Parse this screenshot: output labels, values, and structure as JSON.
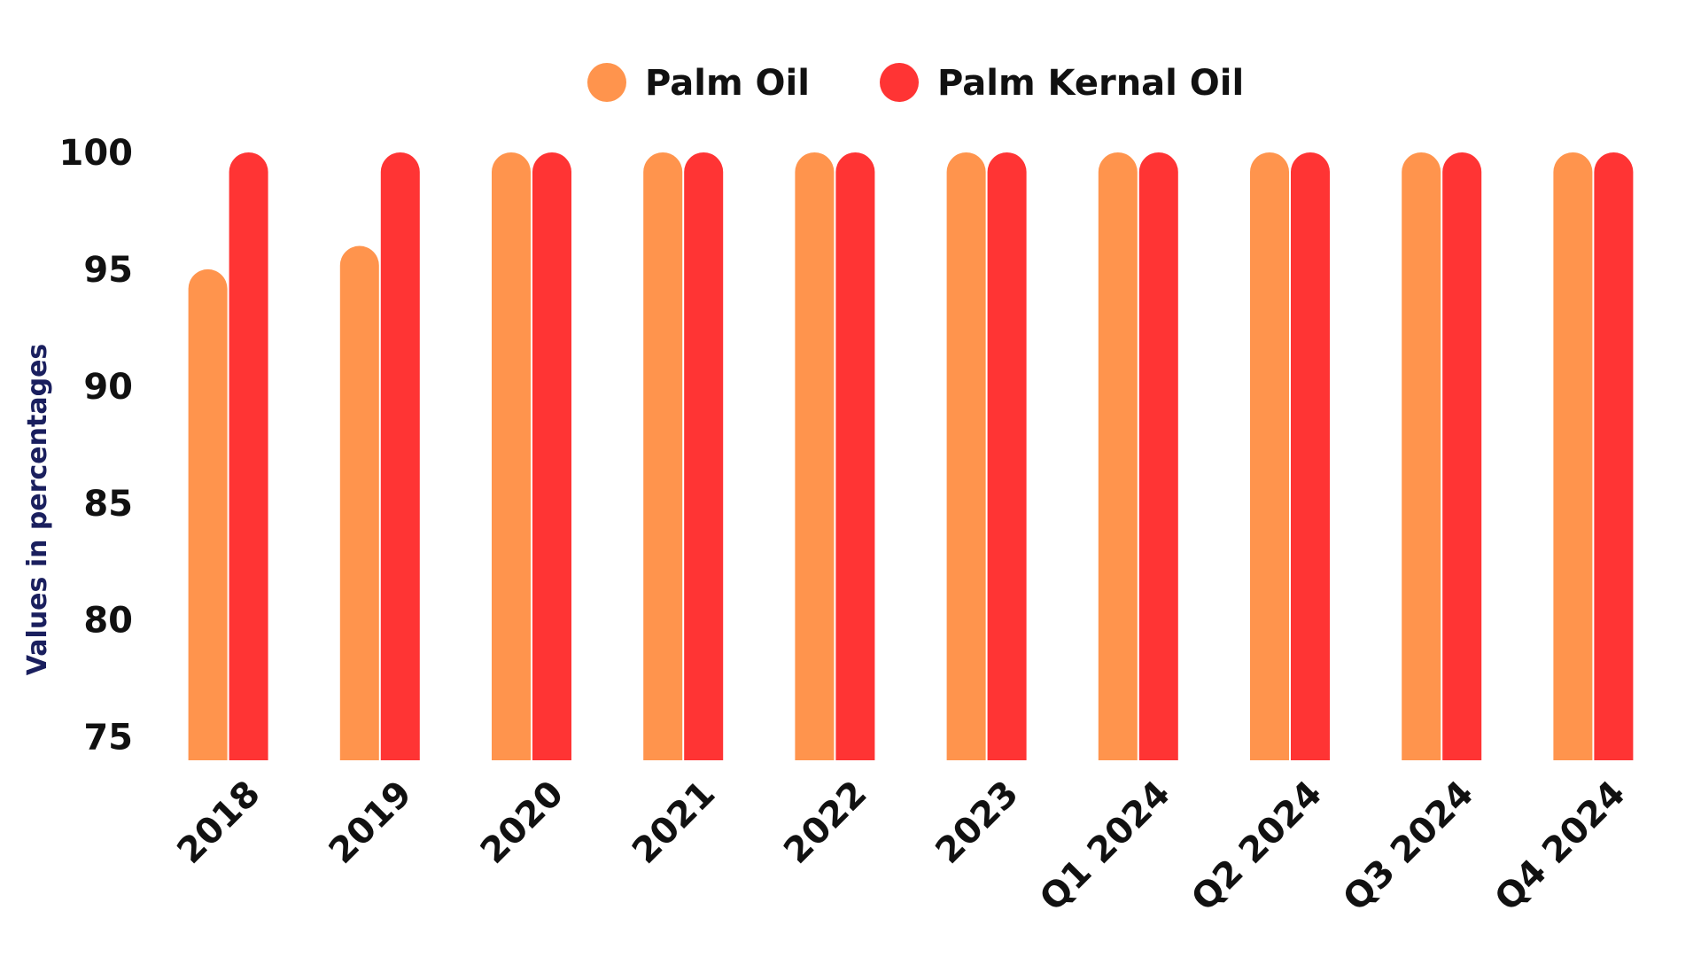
{
  "chart_data": {
    "type": "bar",
    "title": "",
    "xlabel": "",
    "ylabel": "Values in percentages",
    "categories": [
      "2018",
      "2019",
      "2020",
      "2021",
      "2022",
      "2023",
      "Q1 2024",
      "Q2 2024",
      "Q3 2024",
      "Q4 2024"
    ],
    "series": [
      {
        "name": "Palm Oil",
        "color": "#FF944D",
        "values": [
          95,
          96,
          100,
          100,
          100,
          100,
          100,
          100,
          100,
          100
        ]
      },
      {
        "name": "Palm Kernal Oil",
        "color": "#FF3434",
        "values": [
          100,
          100,
          100,
          100,
          100,
          100,
          100,
          100,
          100,
          100
        ]
      }
    ],
    "ylim": [
      74,
      100
    ],
    "yticks": [
      75,
      80,
      85,
      90,
      95,
      100
    ],
    "grid": false,
    "legend_position": "top-center"
  }
}
